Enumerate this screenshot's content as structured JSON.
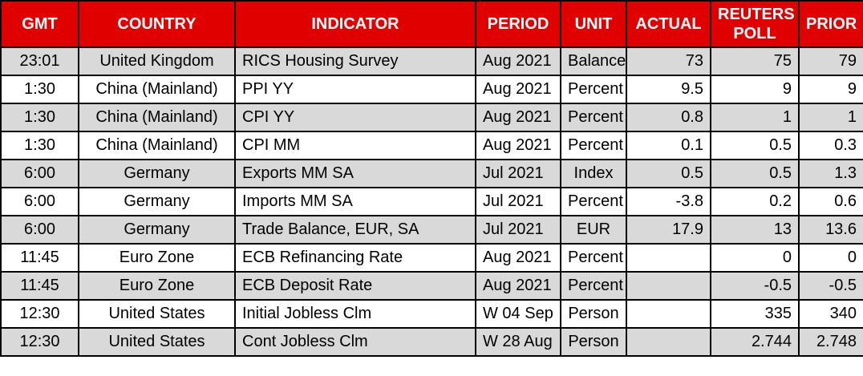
{
  "colors": {
    "header_bg": "#e00000",
    "header_text": "#ffffff",
    "row_alt_bg": "#d9d9d9",
    "row_bg": "#ffffff",
    "border": "#000000",
    "cell_text": "#000000"
  },
  "table": {
    "columns": [
      {
        "key": "gmt",
        "label": "GMT"
      },
      {
        "key": "country",
        "label": "COUNTRY"
      },
      {
        "key": "indicator",
        "label": "INDICATOR"
      },
      {
        "key": "period",
        "label": "PERIOD"
      },
      {
        "key": "unit",
        "label": "UNIT"
      },
      {
        "key": "actual",
        "label": "ACTUAL"
      },
      {
        "key": "reuters-poll",
        "label": "REUTERS POLL"
      },
      {
        "key": "prior",
        "label": "PRIOR"
      }
    ],
    "rows": [
      {
        "gmt": "23:01",
        "country": "United Kingdom",
        "indicator": "RICS Housing Survey",
        "period": "Aug 2021",
        "unit": "Balance",
        "actual": "73",
        "reuters-poll": "75",
        "prior": "79"
      },
      {
        "gmt": "1:30",
        "country": "China (Mainland)",
        "indicator": "PPI YY",
        "period": "Aug 2021",
        "unit": "Percent",
        "actual": "9.5",
        "reuters-poll": "9",
        "prior": "9"
      },
      {
        "gmt": "1:30",
        "country": "China (Mainland)",
        "indicator": "CPI YY",
        "period": "Aug 2021",
        "unit": "Percent",
        "actual": "0.8",
        "reuters-poll": "1",
        "prior": "1"
      },
      {
        "gmt": "1:30",
        "country": "China (Mainland)",
        "indicator": "CPI MM",
        "period": "Aug 2021",
        "unit": "Percent",
        "actual": "0.1",
        "reuters-poll": "0.5",
        "prior": "0.3"
      },
      {
        "gmt": "6:00",
        "country": "Germany",
        "indicator": "Exports MM SA",
        "period": "Jul 2021",
        "unit": "Index",
        "actual": "0.5",
        "reuters-poll": "0.5",
        "prior": "1.3"
      },
      {
        "gmt": "6:00",
        "country": "Germany",
        "indicator": "Imports MM SA",
        "period": "Jul 2021",
        "unit": "Percent",
        "actual": "-3.8",
        "reuters-poll": "0.2",
        "prior": "0.6"
      },
      {
        "gmt": "6:00",
        "country": "Germany",
        "indicator": "Trade Balance, EUR, SA",
        "period": "Jul 2021",
        "unit": "EUR",
        "actual": "17.9",
        "reuters-poll": "13",
        "prior": "13.6"
      },
      {
        "gmt": "11:45",
        "country": "Euro Zone",
        "indicator": "ECB Refinancing Rate",
        "period": "Aug 2021",
        "unit": "Percent",
        "actual": "",
        "reuters-poll": "0",
        "prior": "0"
      },
      {
        "gmt": "11:45",
        "country": "Euro Zone",
        "indicator": "ECB Deposit Rate",
        "period": "Aug 2021",
        "unit": "Percent",
        "actual": "",
        "reuters-poll": "-0.5",
        "prior": "-0.5"
      },
      {
        "gmt": "12:30",
        "country": "United States",
        "indicator": "Initial Jobless Clm",
        "period": "W 04 Sep",
        "unit": "Person",
        "actual": "",
        "reuters-poll": "335",
        "prior": "340"
      },
      {
        "gmt": "12:30",
        "country": "United States",
        "indicator": "Cont Jobless Clm",
        "period": "W 28 Aug",
        "unit": "Person",
        "actual": "",
        "reuters-poll": "2.744",
        "prior": "2.748"
      }
    ]
  }
}
